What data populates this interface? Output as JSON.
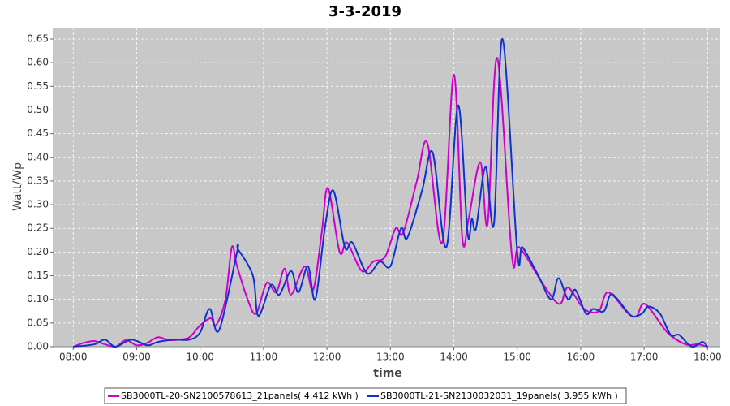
{
  "chart_data": {
    "type": "line",
    "title": "3-3-2019",
    "x_label": "time",
    "y_label": "Watt/Wp",
    "xlim": [
      7.69,
      18.2
    ],
    "ylim": [
      0,
      0.674
    ],
    "xticks": [
      {
        "value": 8,
        "label": "08:00"
      },
      {
        "value": 9,
        "label": "09:00"
      },
      {
        "value": 10,
        "label": "10:00"
      },
      {
        "value": 11,
        "label": "11:00"
      },
      {
        "value": 12,
        "label": "12:00"
      },
      {
        "value": 13,
        "label": "13:00"
      },
      {
        "value": 14,
        "label": "14:00"
      },
      {
        "value": 15,
        "label": "15:00"
      },
      {
        "value": 16,
        "label": "16:00"
      },
      {
        "value": 17,
        "label": "17:00"
      },
      {
        "value": 18,
        "label": "18:00"
      }
    ],
    "yticks": [
      {
        "value": 0,
        "label": "0.00"
      },
      {
        "value": 0.05,
        "label": "0.05"
      },
      {
        "value": 0.1,
        "label": "0.10"
      },
      {
        "value": 0.15,
        "label": "0.15"
      },
      {
        "value": 0.2,
        "label": "0.20"
      },
      {
        "value": 0.25,
        "label": "0.25"
      },
      {
        "value": 0.3,
        "label": "0.30"
      },
      {
        "value": 0.35,
        "label": "0.35"
      },
      {
        "value": 0.4,
        "label": "0.40"
      },
      {
        "value": 0.45,
        "label": "0.45"
      },
      {
        "value": 0.5,
        "label": "0.50"
      },
      {
        "value": 0.55,
        "label": "0.55"
      },
      {
        "value": 0.6,
        "label": "0.60"
      },
      {
        "value": 0.65,
        "label": "0.65"
      }
    ],
    "grid": true,
    "legend": "bottom",
    "series": [
      {
        "name": "SB3000TL-20-SN2100578613_21panels( 4.412 kWh )",
        "color": "#cc00cc",
        "x": [
          8.0,
          8.167,
          8.333,
          8.5,
          8.667,
          8.833,
          9.0,
          9.167,
          9.333,
          9.5,
          9.667,
          9.833,
          10.0,
          10.167,
          10.25,
          10.4,
          10.5,
          10.583,
          10.75,
          10.883,
          11.05,
          11.2,
          11.333,
          11.433,
          11.65,
          11.783,
          11.917,
          12.017,
          12.2,
          12.317,
          12.55,
          12.733,
          12.917,
          13.083,
          13.2,
          13.417,
          13.583,
          13.817,
          14.0,
          14.133,
          14.233,
          14.417,
          14.533,
          14.683,
          14.917,
          15.033,
          15.417,
          15.667,
          15.8,
          16.05,
          16.283,
          16.433,
          16.75,
          16.883,
          17.017,
          17.367,
          17.65,
          17.85,
          18.0
        ],
        "values": [
          0,
          0.008,
          0.012,
          0.005,
          0.0,
          0.014,
          0.003,
          0.008,
          0.02,
          0.014,
          0.015,
          0.02,
          0.045,
          0.06,
          0.045,
          0.1,
          0.21,
          0.17,
          0.1,
          0.07,
          0.135,
          0.115,
          0.165,
          0.11,
          0.17,
          0.12,
          0.24,
          0.335,
          0.2,
          0.22,
          0.16,
          0.18,
          0.19,
          0.25,
          0.24,
          0.35,
          0.43,
          0.22,
          0.575,
          0.23,
          0.27,
          0.39,
          0.26,
          0.61,
          0.19,
          0.21,
          0.13,
          0.09,
          0.125,
          0.08,
          0.075,
          0.115,
          0.07,
          0.065,
          0.09,
          0.03,
          0.005,
          0.005,
          0
        ]
      },
      {
        "name": "SB3000TL-21-SN2130032031_19panels( 3.955 kWh )",
        "color": "#1030d0",
        "x": [
          8.0,
          8.333,
          8.5,
          8.667,
          8.917,
          9.167,
          9.333,
          9.583,
          9.833,
          10.0,
          10.15,
          10.3,
          10.583,
          10.6,
          10.833,
          10.917,
          11.117,
          11.25,
          11.433,
          11.55,
          11.7,
          11.817,
          11.967,
          12.1,
          12.283,
          12.4,
          12.633,
          12.833,
          13.0,
          13.167,
          13.267,
          13.5,
          13.667,
          13.883,
          14.067,
          14.217,
          14.283,
          14.35,
          14.5,
          14.633,
          14.767,
          15.0,
          15.083,
          15.333,
          15.533,
          15.65,
          15.8,
          15.917,
          16.083,
          16.2,
          16.367,
          16.467,
          16.583,
          16.8,
          16.967,
          17.067,
          17.25,
          17.417,
          17.55,
          17.75,
          17.917,
          18.0
        ],
        "values": [
          0,
          0.005,
          0.015,
          0.0,
          0.015,
          0.003,
          0.01,
          0.015,
          0.015,
          0.03,
          0.08,
          0.035,
          0.2,
          0.205,
          0.15,
          0.065,
          0.13,
          0.11,
          0.16,
          0.115,
          0.17,
          0.1,
          0.25,
          0.33,
          0.21,
          0.22,
          0.155,
          0.18,
          0.17,
          0.25,
          0.23,
          0.33,
          0.41,
          0.21,
          0.51,
          0.24,
          0.27,
          0.25,
          0.38,
          0.26,
          0.65,
          0.2,
          0.21,
          0.15,
          0.1,
          0.145,
          0.1,
          0.12,
          0.07,
          0.08,
          0.075,
          0.11,
          0.1,
          0.065,
          0.07,
          0.085,
          0.07,
          0.025,
          0.025,
          0.0,
          0.01,
          0
        ]
      }
    ]
  }
}
